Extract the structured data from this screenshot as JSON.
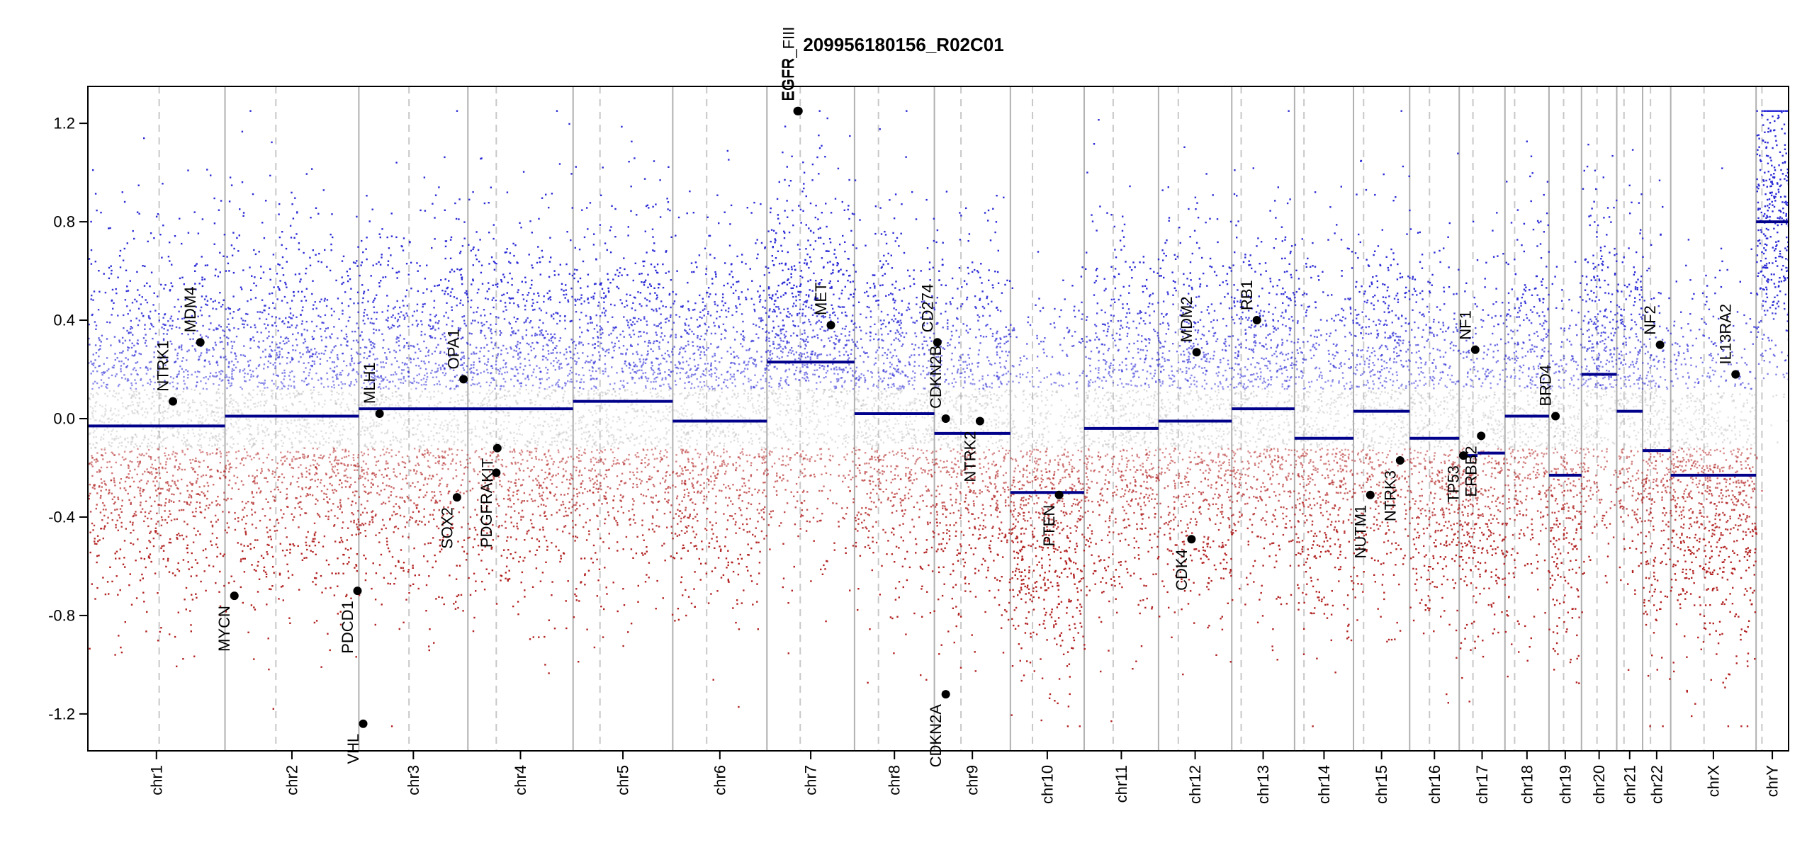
{
  "chart_data": {
    "type": "scatter",
    "title": "209956180156_R02C01",
    "xlabel": "",
    "ylabel": "",
    "ylim": [
      -1.35,
      1.35
    ],
    "yticks": [
      -1.2,
      -0.8,
      -0.4,
      0.0,
      0.4,
      0.8,
      1.2
    ],
    "ytick_labels": [
      "-1.2",
      "-0.8",
      "-0.4",
      "0.0",
      "0.4",
      "0.8",
      "1.2"
    ],
    "colors": {
      "gain": "#2b2bd6",
      "loss": "#b22222",
      "neutral": "#b8b8b8",
      "segment": "#00008b",
      "boundary": "#b0b0b0",
      "centromere": "#c8c8c8",
      "gene": "#000000"
    },
    "chromosomes": [
      {
        "name": "chr1",
        "length": 249,
        "centromere": 0.52,
        "segments": [
          {
            "from": 0.0,
            "to": 1.0,
            "value": -0.03
          }
        ]
      },
      {
        "name": "chr2",
        "length": 243,
        "centromere": 0.38,
        "segments": [
          {
            "from": 0.0,
            "to": 1.0,
            "value": 0.01
          }
        ]
      },
      {
        "name": "chr3",
        "length": 198,
        "centromere": 0.46,
        "segments": [
          {
            "from": 0.0,
            "to": 1.0,
            "value": 0.04
          }
        ]
      },
      {
        "name": "chr4",
        "length": 191,
        "centromere": 0.27,
        "segments": [
          {
            "from": 0.0,
            "to": 1.0,
            "value": 0.04
          }
        ]
      },
      {
        "name": "chr5",
        "length": 181,
        "centromere": 0.27,
        "segments": [
          {
            "from": 0.0,
            "to": 1.0,
            "value": 0.07
          }
        ]
      },
      {
        "name": "chr6",
        "length": 171,
        "centromere": 0.36,
        "segments": [
          {
            "from": 0.0,
            "to": 1.0,
            "value": -0.01
          }
        ]
      },
      {
        "name": "chr7",
        "length": 159,
        "centromere": 0.38,
        "segments": [
          {
            "from": 0.0,
            "to": 1.0,
            "value": 0.23
          }
        ]
      },
      {
        "name": "chr8",
        "length": 145,
        "centromere": 0.3,
        "segments": [
          {
            "from": 0.0,
            "to": 1.0,
            "value": 0.02
          }
        ]
      },
      {
        "name": "chr9",
        "length": 138,
        "centromere": 0.35,
        "segments": [
          {
            "from": 0.0,
            "to": 1.0,
            "value": -0.06
          }
        ]
      },
      {
        "name": "chr10",
        "length": 134,
        "centromere": 0.3,
        "segments": [
          {
            "from": 0.0,
            "to": 1.0,
            "value": -0.3
          }
        ]
      },
      {
        "name": "chr11",
        "length": 135,
        "centromere": 0.39,
        "segments": [
          {
            "from": 0.0,
            "to": 1.0,
            "value": -0.04
          }
        ]
      },
      {
        "name": "chr12",
        "length": 133,
        "centromere": 0.27,
        "segments": [
          {
            "from": 0.0,
            "to": 1.0,
            "value": -0.01
          }
        ]
      },
      {
        "name": "chr13",
        "length": 114,
        "centromere": 0.15,
        "segments": [
          {
            "from": 0.0,
            "to": 1.0,
            "value": 0.04
          }
        ]
      },
      {
        "name": "chr14",
        "length": 107,
        "centromere": 0.16,
        "segments": [
          {
            "from": 0.0,
            "to": 1.0,
            "value": -0.08
          }
        ]
      },
      {
        "name": "chr15",
        "length": 102,
        "centromere": 0.18,
        "segments": [
          {
            "from": 0.0,
            "to": 1.0,
            "value": 0.03
          }
        ]
      },
      {
        "name": "chr16",
        "length": 90,
        "centromere": 0.4,
        "segments": [
          {
            "from": 0.0,
            "to": 1.0,
            "value": -0.08
          }
        ]
      },
      {
        "name": "chr17",
        "length": 83,
        "centromere": 0.3,
        "segments": [
          {
            "from": 0.0,
            "to": 0.4,
            "value": -0.15
          },
          {
            "from": 0.4,
            "to": 1.0,
            "value": -0.14
          }
        ]
      },
      {
        "name": "chr18",
        "length": 80,
        "centromere": 0.22,
        "segments": [
          {
            "from": 0.0,
            "to": 1.0,
            "value": 0.01
          }
        ]
      },
      {
        "name": "chr19",
        "length": 59,
        "centromere": 0.45,
        "segments": [
          {
            "from": 0.0,
            "to": 1.0,
            "value": -0.23
          }
        ]
      },
      {
        "name": "chr20",
        "length": 64,
        "centromere": 0.44,
        "segments": [
          {
            "from": 0.0,
            "to": 1.0,
            "value": 0.18
          }
        ]
      },
      {
        "name": "chr21",
        "length": 47,
        "centromere": 0.28,
        "segments": [
          {
            "from": 0.0,
            "to": 1.0,
            "value": 0.03
          }
        ]
      },
      {
        "name": "chr22",
        "length": 51,
        "centromere": 0.28,
        "segments": [
          {
            "from": 0.0,
            "to": 1.0,
            "value": -0.13
          }
        ]
      },
      {
        "name": "chrX",
        "length": 155,
        "centromere": 0.39,
        "segments": [
          {
            "from": 0.0,
            "to": 1.0,
            "value": -0.23
          }
        ]
      },
      {
        "name": "chrY",
        "length": 59,
        "centromere": 0.18,
        "segments": [
          {
            "from": 0.0,
            "to": 1.0,
            "value": 0.8
          }
        ]
      }
    ],
    "genes": [
      {
        "name": "NTRK1",
        "chr": "chr1",
        "pos": 0.62,
        "value": 0.07
      },
      {
        "name": "MDM4",
        "chr": "chr1",
        "pos": 0.82,
        "value": 0.31
      },
      {
        "name": "MYCN",
        "chr": "chr2",
        "pos": 0.07,
        "value": -0.72
      },
      {
        "name": "PDCD1",
        "chr": "chr2",
        "pos": 0.99,
        "value": -0.7
      },
      {
        "name": "VHL",
        "chr": "chr3",
        "pos": 0.04,
        "value": -1.24
      },
      {
        "name": "MLH1",
        "chr": "chr3",
        "pos": 0.19,
        "value": 0.02
      },
      {
        "name": "SOX2",
        "chr": "chr3",
        "pos": 0.9,
        "value": -0.32
      },
      {
        "name": "OPA1",
        "chr": "chr3",
        "pos": 0.96,
        "value": 0.16
      },
      {
        "name": "PDGFRA",
        "chr": "chr4",
        "pos": 0.27,
        "value": -0.22
      },
      {
        "name": "KIT",
        "chr": "chr4",
        "pos": 0.28,
        "value": -0.12
      },
      {
        "name": "EGFR",
        "chr": "chr7",
        "pos": 0.35,
        "value": 1.25
      },
      {
        "name": "EGFR_FIII",
        "chr": "chr7",
        "pos": 0.36,
        "value": 1.25
      },
      {
        "name": "MET",
        "chr": "chr7",
        "pos": 0.73,
        "value": 0.38
      },
      {
        "name": "CD274",
        "chr": "chr9",
        "pos": 0.04,
        "value": 0.31
      },
      {
        "name": "CDKN2B",
        "chr": "chr9",
        "pos": 0.15,
        "value": 0.0
      },
      {
        "name": "CDKN2A",
        "chr": "chr9",
        "pos": 0.15,
        "value": -1.12
      },
      {
        "name": "NTRK2",
        "chr": "chr9",
        "pos": 0.6,
        "value": -0.01
      },
      {
        "name": "PTEN",
        "chr": "chr10",
        "pos": 0.66,
        "value": -0.31
      },
      {
        "name": "MDM2",
        "chr": "chr12",
        "pos": 0.52,
        "value": 0.27
      },
      {
        "name": "CDK4",
        "chr": "chr12",
        "pos": 0.45,
        "value": -0.49
      },
      {
        "name": "RB1",
        "chr": "chr13",
        "pos": 0.4,
        "value": 0.4
      },
      {
        "name": "NUTM1",
        "chr": "chr15",
        "pos": 0.3,
        "value": -0.31
      },
      {
        "name": "NTRK3",
        "chr": "chr15",
        "pos": 0.83,
        "value": -0.17
      },
      {
        "name": "NF1",
        "chr": "chr17",
        "pos": 0.35,
        "value": 0.28
      },
      {
        "name": "TP53",
        "chr": "chr17",
        "pos": 0.09,
        "value": -0.15
      },
      {
        "name": "ERBB2",
        "chr": "chr17",
        "pos": 0.48,
        "value": -0.07
      },
      {
        "name": "BRD4",
        "chr": "chr19",
        "pos": 0.2,
        "value": 0.01
      },
      {
        "name": "NF2",
        "chr": "chr22",
        "pos": 0.62,
        "value": 0.3
      },
      {
        "name": "IL13RA2",
        "chr": "chrX",
        "pos": 0.76,
        "value": 0.18
      }
    ]
  }
}
